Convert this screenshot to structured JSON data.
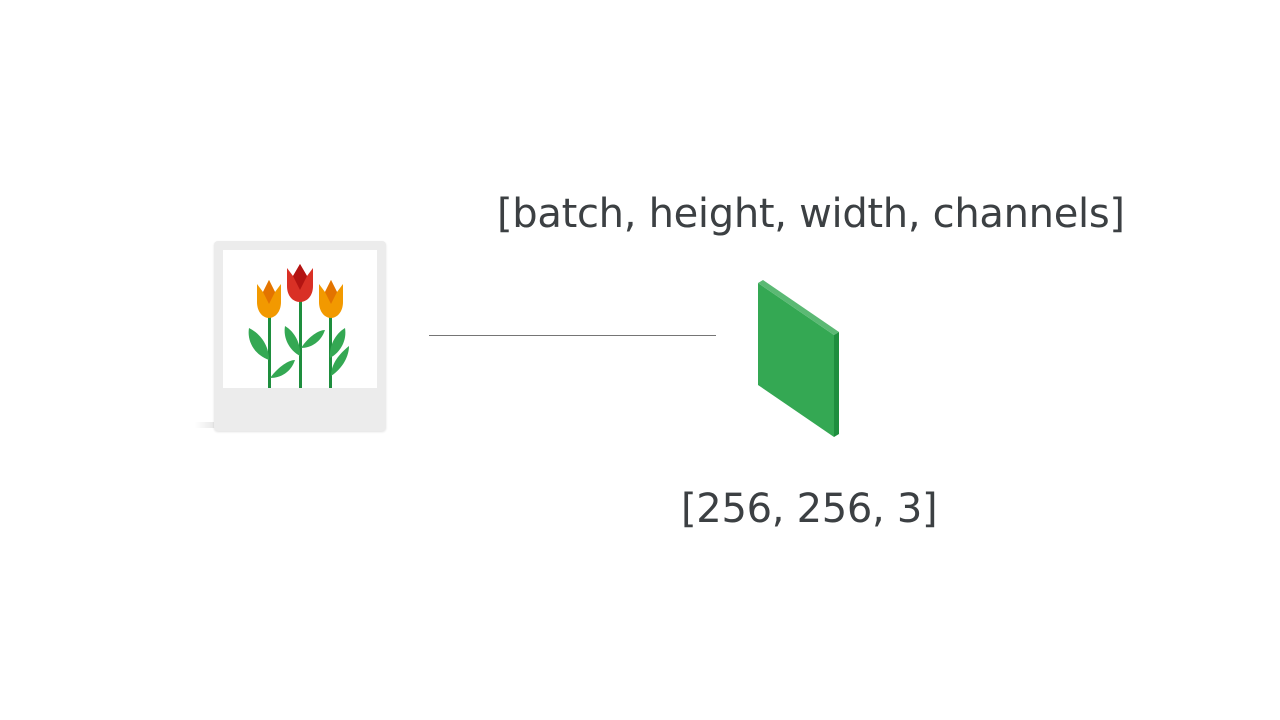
{
  "tensor_shape_label": "[batch, height, width, channels]",
  "tensor_dims_label": "[256, 256, 3]",
  "colors": {
    "tensor_green": "#34a853",
    "tensor_green_dark": "#1e8e3e",
    "tulip_red": "#d93025",
    "tulip_orange": "#f29900",
    "leaf_green": "#34a853",
    "connector_gray": "#757575"
  },
  "icons": {
    "image": "tulip-photo-icon",
    "tensor": "tensor-slab-icon"
  }
}
